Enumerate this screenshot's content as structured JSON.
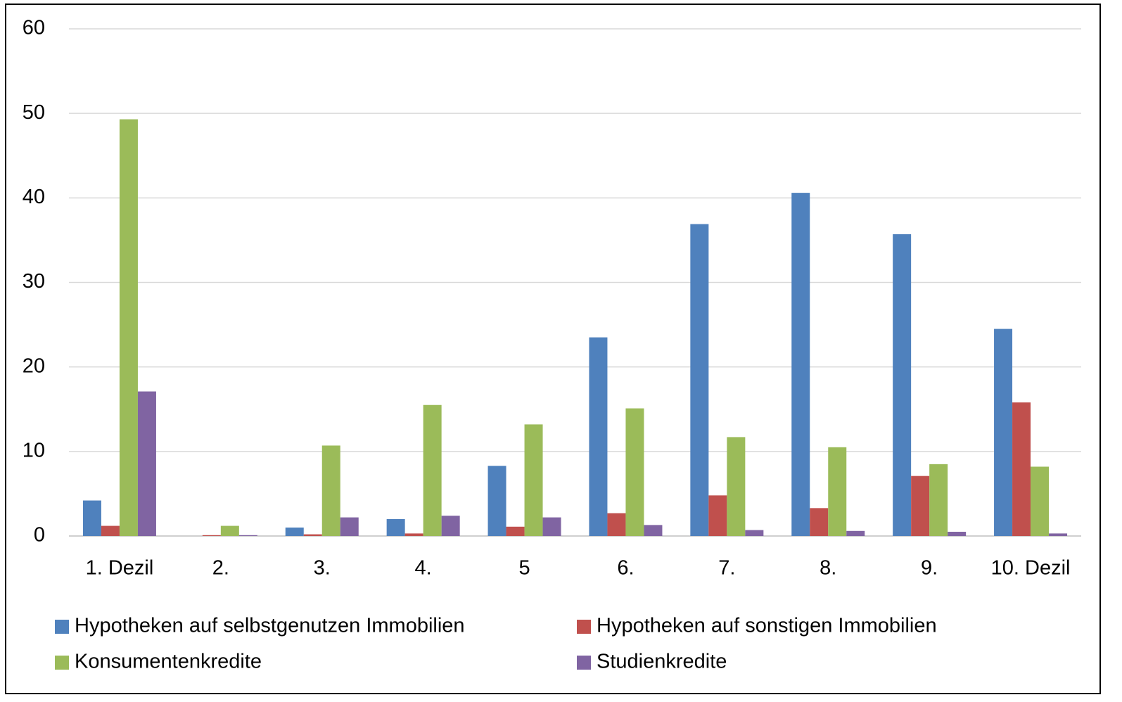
{
  "chart_data": {
    "type": "bar",
    "categories": [
      "1. Dezil",
      "2.",
      "3.",
      "4.",
      "5",
      "6.",
      "7.",
      "8.",
      "9.",
      "10. Dezil"
    ],
    "series": [
      {
        "name": "Hypotheken auf selbstgenutzen Immobilien",
        "color": "#4f81bd",
        "values": [
          4.2,
          0,
          1.0,
          2.0,
          8.3,
          23.5,
          36.9,
          40.6,
          35.7,
          24.5
        ]
      },
      {
        "name": "Hypotheken auf sonstigen Immobilien",
        "color": "#c0504d",
        "values": [
          1.2,
          0.1,
          0.2,
          0.3,
          1.1,
          2.7,
          4.8,
          3.3,
          7.1,
          15.8
        ]
      },
      {
        "name": "Konsumentenkredite",
        "color": "#9bbb59",
        "values": [
          49.3,
          1.2,
          10.7,
          15.5,
          13.2,
          15.1,
          11.7,
          10.5,
          8.5,
          8.2
        ]
      },
      {
        "name": "Studienkredite",
        "color": "#8064a2",
        "values": [
          17.1,
          0.1,
          2.2,
          2.4,
          2.2,
          1.3,
          0.7,
          0.6,
          0.5,
          0.3
        ]
      }
    ],
    "ylim": [
      0,
      60
    ],
    "yticks": [
      0,
      10,
      20,
      30,
      40,
      50,
      60
    ],
    "grid": true,
    "legend": "bottom"
  }
}
